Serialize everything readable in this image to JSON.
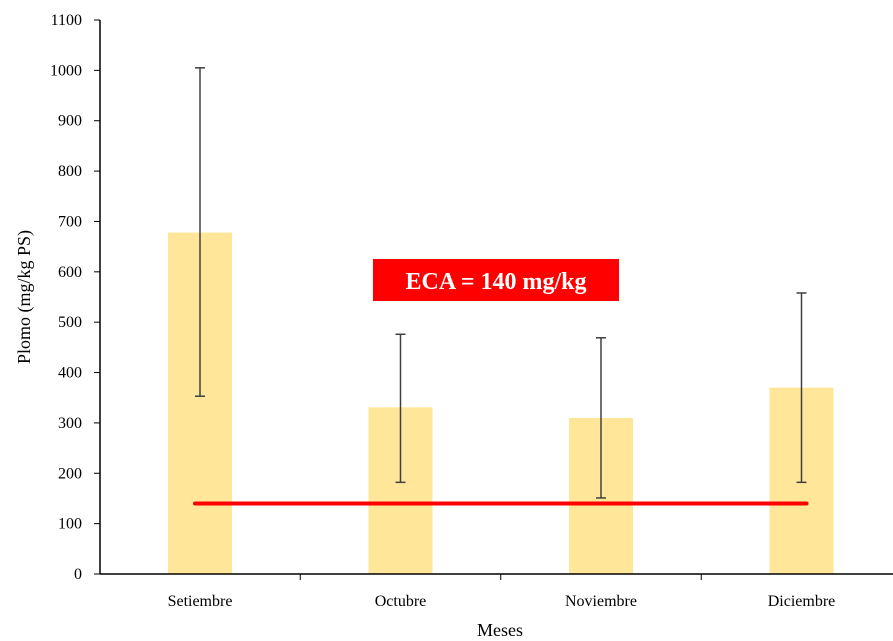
{
  "chart_data": {
    "type": "bar",
    "title": "",
    "xlabel": "Meses",
    "ylabel": "Plomo (mg/kg PS)",
    "categories": [
      "Setiembre",
      "Octubre",
      "Noviembre",
      "Diciembre"
    ],
    "values": [
      678,
      331,
      310,
      370
    ],
    "error_bars": [
      {
        "low": 353,
        "high": 1005
      },
      {
        "low": 182,
        "high": 476
      },
      {
        "low": 151,
        "high": 469
      },
      {
        "low": 182,
        "high": 558
      }
    ],
    "ylim": [
      0,
      1100
    ],
    "yticks": [
      0,
      100,
      200,
      300,
      400,
      500,
      600,
      700,
      800,
      900,
      1000,
      1100
    ],
    "grid": false,
    "legend": "none",
    "reference_line": {
      "value": 140,
      "label": "ECA = 140 mg/kg",
      "color": "#ff0000"
    },
    "colors": {
      "bar": "#ffe699",
      "error_bar": "#404040",
      "axis": "#000000"
    }
  }
}
